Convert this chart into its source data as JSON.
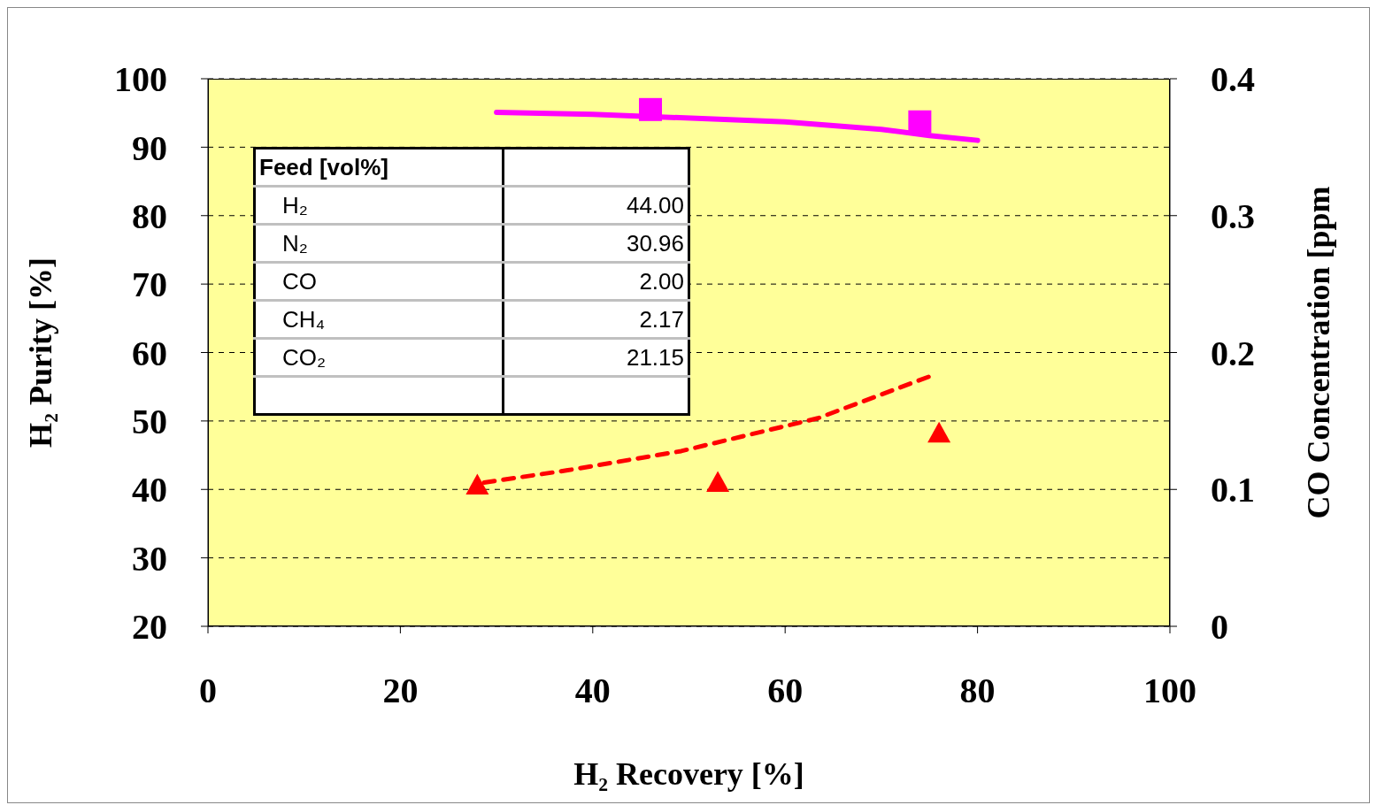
{
  "chart_data": {
    "type": "line",
    "xlabel": "H₂ Recovery [%]",
    "ylabel": "H₂ Purity [%]",
    "y2label": "CO Concentration [ppm",
    "xlim": [
      0,
      100
    ],
    "xticks": [
      0,
      20,
      40,
      60,
      80,
      100
    ],
    "ylim": [
      20,
      100
    ],
    "yticks": [
      20,
      30,
      40,
      50,
      60,
      70,
      80,
      90,
      100
    ],
    "y2lim": [
      0,
      0.4
    ],
    "y2ticks": [
      0,
      0.1,
      0.2,
      0.3,
      0.4
    ],
    "grid": "y",
    "series": [
      {
        "type": "line",
        "color": "#ff00ff",
        "line_style": "solid",
        "marker": "none",
        "x": [
          30,
          40,
          60,
          70,
          75,
          80
        ],
        "values": [
          95.1,
          94.8,
          93.7,
          92.6,
          91.7,
          91.0
        ]
      },
      {
        "type": "scatter",
        "color": "#ff00ff",
        "marker": "square",
        "x": [
          46,
          74
        ],
        "values": [
          95.5,
          93.7
        ]
      },
      {
        "type": "line",
        "axis": "y2",
        "color": "#ff0000",
        "line_style": "dashed",
        "marker": "none",
        "x": [
          28.7,
          37.4,
          49.2,
          63.4,
          75.2
        ],
        "values": [
          0.105,
          0.114,
          0.128,
          0.152,
          0.183
        ]
      },
      {
        "type": "scatter",
        "axis": "y2",
        "color": "#ff0000",
        "marker": "triangle",
        "x": [
          28,
          53,
          76
        ],
        "values": [
          0.103,
          0.105,
          0.141
        ]
      }
    ],
    "annotations": [
      "Feed [vol%]",
      "H₂",
      "44.00",
      "N₂",
      "30.96",
      "CO",
      "2.00",
      "CH₄",
      "2.17",
      "CO₂",
      "21.15"
    ]
  }
}
